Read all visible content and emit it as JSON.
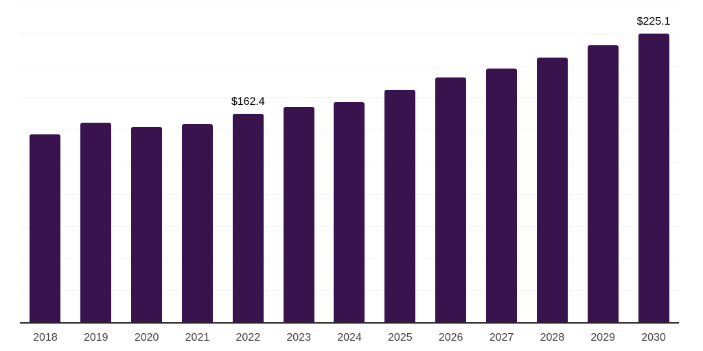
{
  "chart_data": {
    "type": "bar",
    "title": "",
    "xlabel": "",
    "ylabel": "",
    "categories": [
      "2018",
      "2019",
      "2020",
      "2021",
      "2022",
      "2023",
      "2024",
      "2025",
      "2026",
      "2027",
      "2028",
      "2029",
      "2030"
    ],
    "values": [
      146.6,
      155.7,
      152.5,
      154.6,
      162.4,
      167.9,
      171.7,
      181.3,
      190.9,
      197.8,
      206.3,
      215.9,
      225.1
    ],
    "bar_labels": [
      "",
      "",
      "",
      "",
      "$162.4",
      "",
      "",
      "",
      "",
      "",
      "",
      "",
      "$225.1"
    ],
    "ylim": [
      0,
      250
    ],
    "grid_step": 25,
    "grid": true,
    "legend": false,
    "y_axis_labels_visible": false,
    "colors": {
      "bar": "#38134E",
      "gridline": "#f3f3f5",
      "axis_line": "#262626",
      "tick_label": "#3f3f3f",
      "value_label": "#000000",
      "background": "#ffffff"
    }
  }
}
